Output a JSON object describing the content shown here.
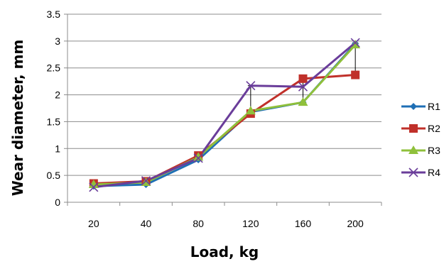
{
  "chart_data": {
    "type": "line",
    "xlabel": "Load, kg",
    "ylabel": "Wear diameter, mm",
    "categories": [
      "20",
      "40",
      "80",
      "120",
      "160",
      "200"
    ],
    "yticks": [
      "0",
      "0.5",
      "1",
      "1.5",
      "2",
      "2.5",
      "3",
      "3.5"
    ],
    "ylim": [
      0,
      3.5
    ],
    "grid": "horizontal",
    "legend_position": "right",
    "series": [
      {
        "name": "R1",
        "color": "#1f6fb5",
        "marker": "diamond",
        "values": [
          0.3,
          0.33,
          0.79,
          1.68,
          1.86,
          2.95
        ]
      },
      {
        "name": "R2",
        "color": "#c0302a",
        "marker": "square",
        "values": [
          0.35,
          0.39,
          0.87,
          1.65,
          2.3,
          2.37
        ]
      },
      {
        "name": "R3",
        "color": "#8fc03b",
        "marker": "triangle",
        "values": [
          0.33,
          0.37,
          0.84,
          1.7,
          1.86,
          2.93
        ]
      },
      {
        "name": "R4",
        "color": "#6a3d9a",
        "marker": "x",
        "values": [
          0.28,
          0.4,
          0.82,
          2.17,
          2.15,
          2.97
        ]
      }
    ],
    "error_bars": [
      {
        "category": "120",
        "low": 1.65,
        "high": 2.17
      },
      {
        "category": "160",
        "low": 1.86,
        "high": 2.3
      },
      {
        "category": "200",
        "low": 2.37,
        "high": 2.97
      }
    ]
  }
}
